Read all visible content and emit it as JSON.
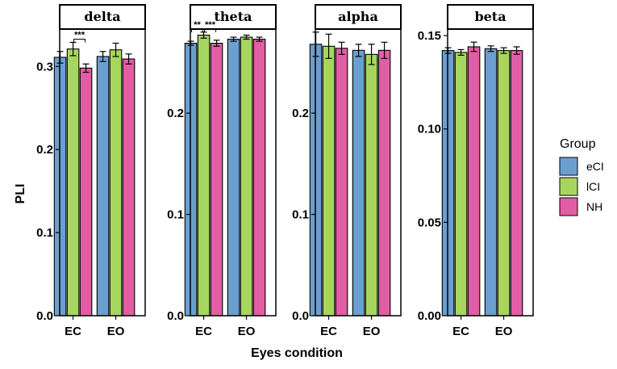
{
  "chart_data": {
    "type": "bar",
    "xlabel": "Eyes condition",
    "ylabel": "PLI",
    "categories": [
      "EC",
      "EO"
    ],
    "legend": {
      "title": "Group",
      "position": "right",
      "entries": [
        {
          "name": "eCI",
          "color": "#6b9fd0"
        },
        {
          "name": "lCI",
          "color": "#a7d65f"
        },
        {
          "name": "NH",
          "color": "#e15ea4"
        }
      ]
    },
    "panels": [
      {
        "name": "delta",
        "ylim": [
          0,
          0.345
        ],
        "ticks": [
          0.0,
          0.1,
          0.2,
          0.3
        ],
        "tick_labels": [
          "0.0",
          "0.1",
          "0.2",
          "0.3"
        ],
        "series": [
          {
            "name": "eCI",
            "values": [
              0.311,
              0.312
            ],
            "errors": [
              0.007,
              0.006
            ]
          },
          {
            "name": "lCI",
            "values": [
              0.321,
              0.32
            ],
            "errors": [
              0.008,
              0.008
            ]
          },
          {
            "name": "NH",
            "values": [
              0.298,
              0.309
            ],
            "errors": [
              0.005,
              0.006
            ]
          }
        ],
        "annotations": [
          {
            "label": "***",
            "category": "EC",
            "from": "lCI",
            "to": "NH"
          }
        ]
      },
      {
        "name": "theta",
        "ylim": [
          0,
          0.283
        ],
        "ticks": [
          0.0,
          0.1,
          0.2
        ],
        "tick_labels": [
          "0.0",
          "0.1",
          "0.2"
        ],
        "series": [
          {
            "name": "eCI",
            "values": [
              0.269,
              0.273
            ],
            "errors": [
              0.002,
              0.002
            ]
          },
          {
            "name": "lCI",
            "values": [
              0.277,
              0.275
            ],
            "errors": [
              0.003,
              0.002
            ]
          },
          {
            "name": "NH",
            "values": [
              0.269,
              0.273
            ],
            "errors": [
              0.003,
              0.002
            ]
          }
        ],
        "annotations": [
          {
            "label": "**",
            "category": "EC",
            "from": "eCI",
            "to": "lCI"
          },
          {
            "label": "***",
            "category": "EC",
            "from": "lCI",
            "to": "NH"
          }
        ]
      },
      {
        "name": "alpha",
        "ylim": [
          0,
          0.283
        ],
        "ticks": [
          0.0,
          0.1,
          0.2
        ],
        "tick_labels": [
          "0.0",
          "0.1",
          "0.2"
        ],
        "series": [
          {
            "name": "eCI",
            "values": [
              0.268,
              0.262
            ],
            "errors": [
              0.012,
              0.006
            ]
          },
          {
            "name": "lCI",
            "values": [
              0.266,
              0.258
            ],
            "errors": [
              0.012,
              0.01
            ]
          },
          {
            "name": "NH",
            "values": [
              0.264,
              0.262
            ],
            "errors": [
              0.006,
              0.008
            ]
          }
        ],
        "annotations": []
      },
      {
        "name": "beta",
        "ylim": [
          0,
          0.1535
        ],
        "ticks": [
          0.0,
          0.05,
          0.1,
          0.15
        ],
        "tick_labels": [
          "0.00",
          "0.05",
          "0.10",
          "0.15"
        ],
        "series": [
          {
            "name": "eCI",
            "values": [
              0.142,
              0.143
            ],
            "errors": [
              0.0015,
              0.0015
            ]
          },
          {
            "name": "lCI",
            "values": [
              0.141,
              0.142
            ],
            "errors": [
              0.0015,
              0.0015
            ]
          },
          {
            "name": "NH",
            "values": [
              0.144,
              0.142
            ],
            "errors": [
              0.0025,
              0.002
            ]
          }
        ],
        "annotations": []
      }
    ]
  }
}
